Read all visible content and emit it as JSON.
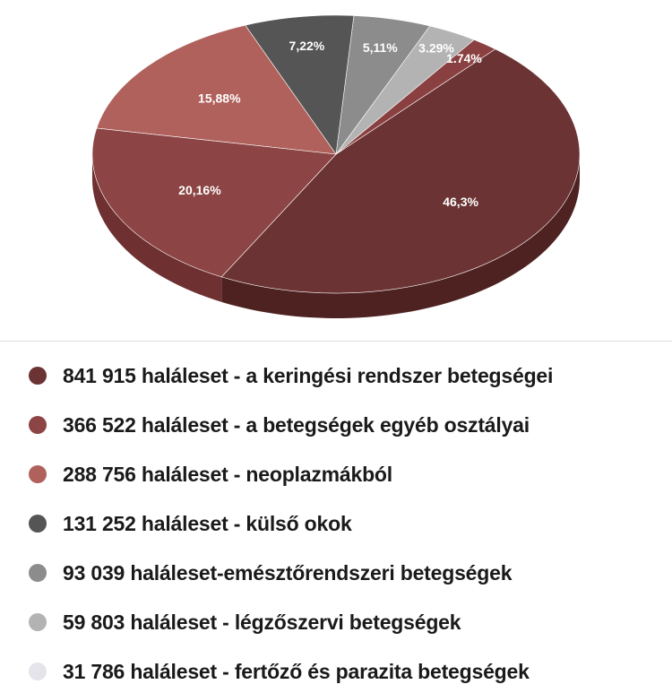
{
  "chart_data": {
    "type": "pie",
    "title": "",
    "slices": [
      {
        "label": "46,3%",
        "value": 46.3,
        "color": "#6b3333",
        "side_color": "#4f2222"
      },
      {
        "label": "1.74%",
        "value": 1.74,
        "color": "#8a4040",
        "side_color": "#6a2c2c"
      },
      {
        "label": "3.29%",
        "value": 3.29,
        "color": "#b3b3b3",
        "side_color": "#8f8f8f"
      },
      {
        "label": "5,11%",
        "value": 5.11,
        "color": "#8c8c8c",
        "side_color": "#6b6b6b"
      },
      {
        "label": "7,22%",
        "value": 7.22,
        "color": "#555555",
        "side_color": "#3a3a3a"
      },
      {
        "label": "15,88%",
        "value": 15.88,
        "color": "#b0615c",
        "side_color": "#8a4540"
      },
      {
        "label": "20,16%",
        "value": 20.16,
        "color": "#8c4444",
        "side_color": "#6e3030"
      }
    ]
  },
  "legend": {
    "items": [
      {
        "text": "841 915 haláleset - a keringési rendszer betegségei",
        "color": "#6b3333"
      },
      {
        "text": "366 522 haláleset - a betegségek egyéb osztályai",
        "color": "#8c4444"
      },
      {
        "text": "288 756 haláleset - neoplazmákból",
        "color": "#b0615c"
      },
      {
        "text": "131 252 haláleset - külső okok",
        "color": "#555555"
      },
      {
        "text": "93 039 haláleset-emésztőrendszeri betegségek",
        "color": "#8c8c8c"
      },
      {
        "text": "59 803 haláleset - légzőszervi betegségek",
        "color": "#b3b3b3"
      },
      {
        "text": "31 786 haláleset - fertőző és parazita betegségek",
        "color": "#e4e4ea"
      }
    ]
  }
}
